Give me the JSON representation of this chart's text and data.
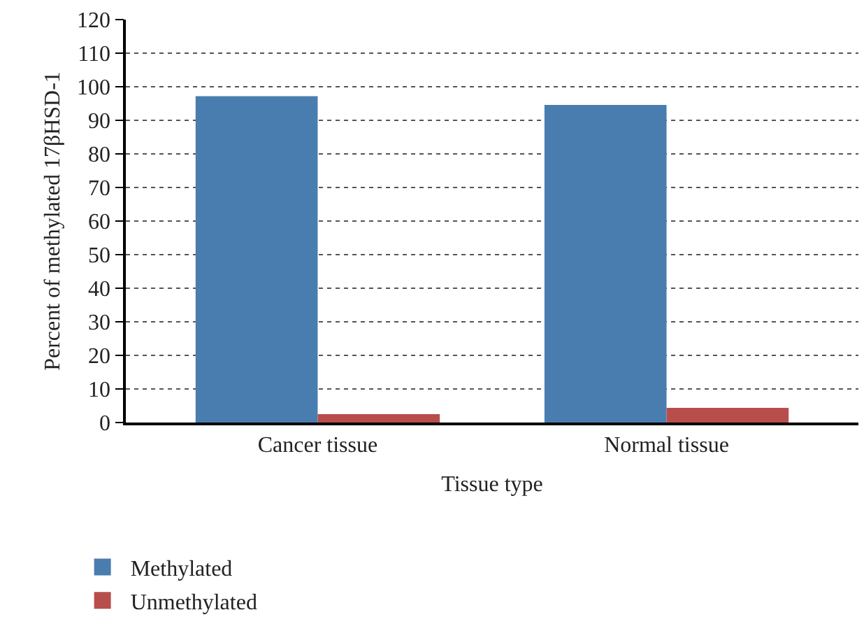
{
  "chart_data": {
    "type": "bar",
    "xlabel": "Tissue type",
    "ylabel": "Percent of methylated 17βHSD-1",
    "categories": [
      "Cancer tissue",
      "Normal tissue"
    ],
    "series": [
      {
        "name": "Methylated",
        "color": "#4a7daf",
        "values": [
          97.2,
          94.6
        ]
      },
      {
        "name": "Unmethylated",
        "color": "#b84e4c",
        "values": [
          2.5,
          4.4
        ]
      }
    ],
    "ylim": [
      0,
      120
    ],
    "yticks": [
      0,
      10,
      20,
      30,
      40,
      50,
      60,
      70,
      80,
      90,
      100,
      110,
      120
    ],
    "grid": "y",
    "legend": "bottom left"
  }
}
